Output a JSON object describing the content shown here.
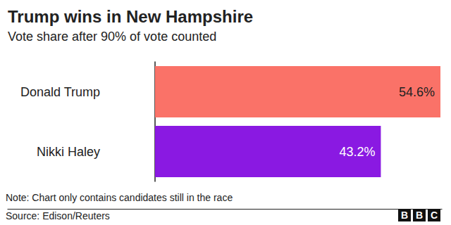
{
  "chart_data": {
    "type": "bar",
    "title": "Trump wins in New Hampshire",
    "subtitle": "Vote share after 90% of vote counted",
    "categories": [
      "Donald Trump",
      "Nikki Haley"
    ],
    "values": [
      54.6,
      43.2
    ],
    "value_labels": [
      "54.6%",
      "43.2%"
    ],
    "colors": [
      "#fa7268",
      "#8a19e2"
    ],
    "orientation": "horizontal",
    "xlim": [
      0,
      54.6
    ],
    "grid": false,
    "data_labels": true,
    "tick_labels": "y",
    "note": "Note: Chart only contains candidates still in the race",
    "source": "Source: Edison/Reuters",
    "logo": "BBC"
  }
}
